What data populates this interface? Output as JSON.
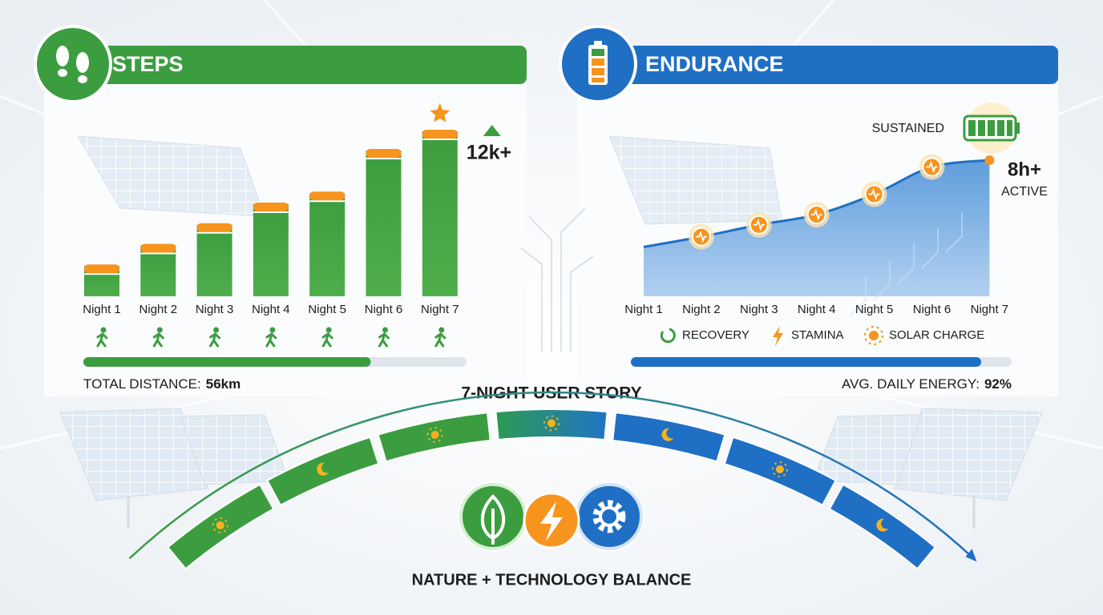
{
  "chart_data": [
    {
      "type": "bar",
      "title": "STEPS",
      "categories": [
        "Night 1",
        "Night 2",
        "Night 3",
        "Night 4",
        "Night 5",
        "Night 6",
        "Night 7"
      ],
      "values": [
        2200,
        3700,
        5200,
        6700,
        7500,
        10600,
        12000
      ],
      "value_labels": [
        null,
        null,
        null,
        null,
        null,
        null,
        "12k+"
      ],
      "color": "#3c9d40",
      "cap_color": "#f7941d"
    },
    {
      "type": "area",
      "title": "ENDURANCE",
      "categories": [
        "Night 1",
        "Night 2",
        "Night 3",
        "Night 4",
        "Night 5",
        "Night 6",
        "Night 7"
      ],
      "values": [
        2.9,
        3.5,
        4.2,
        4.8,
        6.0,
        7.6,
        8.0
      ],
      "value_labels": [
        null,
        null,
        null,
        null,
        null,
        null,
        "8h+"
      ],
      "annotations": [
        "SUSTAINED",
        "ACTIVE"
      ],
      "legend": [
        "RECOVERY",
        "STAMINA",
        "SOLAR CHARGE"
      ],
      "color": "#2f7fd0",
      "marker_color": "#f7941d"
    }
  ],
  "steps_summary": {
    "label": "TOTAL DISTANCE:",
    "value": "56km",
    "progress": 75
  },
  "endurance_summary": {
    "label": "AVG. DAILY ENERGY:",
    "value": {
      "value": 92,
      "label": "92%"
    }
  },
  "story_title": "7-NIGHT USER STORY",
  "footer": "NATURE + TECHNOLOGY BALANCE"
}
